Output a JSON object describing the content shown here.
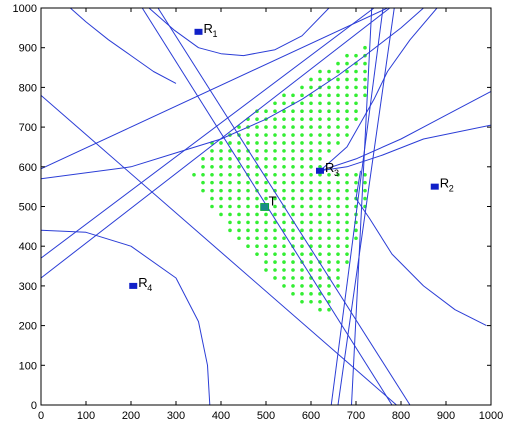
{
  "chart_data": {
    "type": "scatter",
    "title": "",
    "xlabel": "",
    "ylabel": "",
    "xlim": [
      0,
      1000
    ],
    "ylim": [
      0,
      1000
    ],
    "xticks": [
      "0",
      "100",
      "200",
      "300",
      "400",
      "500",
      "600",
      "700",
      "800",
      "900",
      "1000"
    ],
    "yticks": [
      "0",
      "100",
      "200",
      "300",
      "400",
      "500",
      "600",
      "700",
      "800",
      "900",
      "1000"
    ],
    "grid": false,
    "legend": "none",
    "colors": {
      "curves": "#2b3dd6",
      "receivers": "#1020c8",
      "feasible": "#33ee33",
      "target": "#1a8a8a",
      "axes": "#000000"
    },
    "receivers": [
      {
        "letter": "R",
        "sub": "1",
        "x": 350,
        "y": 940
      },
      {
        "letter": "R",
        "sub": "2",
        "x": 875,
        "y": 550
      },
      {
        "letter": "R",
        "sub": "3",
        "x": 620,
        "y": 590
      },
      {
        "letter": "R",
        "sub": "4",
        "x": 205,
        "y": 300
      }
    ],
    "target": {
      "label": "T",
      "x": 497,
      "y": 500
    },
    "lines": [
      [
        [
          0,
          320
        ],
        [
          775,
          1000
        ]
      ],
      [
        [
          0,
          370
        ],
        [
          740,
          1000
        ]
      ],
      [
        [
          0,
          595
        ],
        [
          770,
          1000
        ]
      ],
      [
        [
          0,
          780
        ],
        [
          790,
          0
        ]
      ],
      [
        [
          225,
          1000
        ],
        [
          780,
          0
        ]
      ],
      [
        [
          260,
          1000
        ],
        [
          820,
          0
        ]
      ],
      [
        [
          645,
          0
        ],
        [
          760,
          1000
        ]
      ],
      [
        [
          660,
          0
        ],
        [
          785,
          1000
        ]
      ],
      [
        [
          690,
          0
        ],
        [
          735,
          1000
        ]
      ]
    ],
    "curves": [
      [
        [
          65,
          1000
        ],
        [
          100,
          965
        ],
        [
          150,
          920
        ],
        [
          200,
          880
        ],
        [
          250,
          840
        ],
        [
          300,
          810
        ]
      ],
      [
        [
          240,
          1000
        ],
        [
          295,
          945
        ],
        [
          350,
          900
        ],
        [
          400,
          885
        ],
        [
          450,
          880
        ],
        [
          520,
          895
        ],
        [
          580,
          930
        ],
        [
          640,
          1000
        ]
      ],
      [
        [
          0,
          440
        ],
        [
          100,
          435
        ],
        [
          200,
          400
        ],
        [
          300,
          320
        ],
        [
          350,
          210
        ],
        [
          370,
          100
        ],
        [
          375,
          0
        ]
      ],
      [
        [
          0,
          570
        ],
        [
          200,
          600
        ],
        [
          300,
          635
        ],
        [
          400,
          670
        ],
        [
          500,
          720
        ],
        [
          580,
          770
        ],
        [
          660,
          830
        ],
        [
          720,
          880
        ],
        [
          800,
          950
        ],
        [
          850,
          1000
        ]
      ],
      [
        [
          620,
          590
        ],
        [
          650,
          620
        ],
        [
          680,
          650
        ],
        [
          710,
          710
        ],
        [
          740,
          770
        ],
        [
          770,
          840
        ],
        [
          820,
          920
        ],
        [
          880,
          1000
        ]
      ],
      [
        [
          620,
          590
        ],
        [
          680,
          600
        ],
        [
          760,
          630
        ],
        [
          850,
          670
        ],
        [
          1000,
          705
        ]
      ],
      [
        [
          620,
          590
        ],
        [
          700,
          620
        ],
        [
          800,
          670
        ],
        [
          900,
          730
        ],
        [
          1000,
          790
        ]
      ],
      [
        [
          710,
          590
        ],
        [
          700,
          520
        ],
        [
          730,
          470
        ],
        [
          780,
          380
        ],
        [
          850,
          300
        ],
        [
          920,
          240
        ],
        [
          990,
          200
        ]
      ]
    ],
    "feasible_region": [
      [
        715,
        905
      ],
      [
        730,
        900
      ],
      [
        730,
        790
      ],
      [
        695,
        700
      ],
      [
        640,
        620
      ],
      [
        620,
        590
      ],
      [
        720,
        595
      ],
      [
        735,
        555
      ],
      [
        705,
        430
      ],
      [
        670,
        320
      ],
      [
        640,
        220
      ],
      [
        590,
        250
      ],
      [
        520,
        310
      ],
      [
        450,
        400
      ],
      [
        390,
        480
      ],
      [
        335,
        570
      ],
      [
        345,
        620
      ],
      [
        380,
        660
      ],
      [
        450,
        720
      ],
      [
        520,
        770
      ],
      [
        580,
        810
      ],
      [
        640,
        855
      ],
      [
        690,
        890
      ]
    ]
  }
}
